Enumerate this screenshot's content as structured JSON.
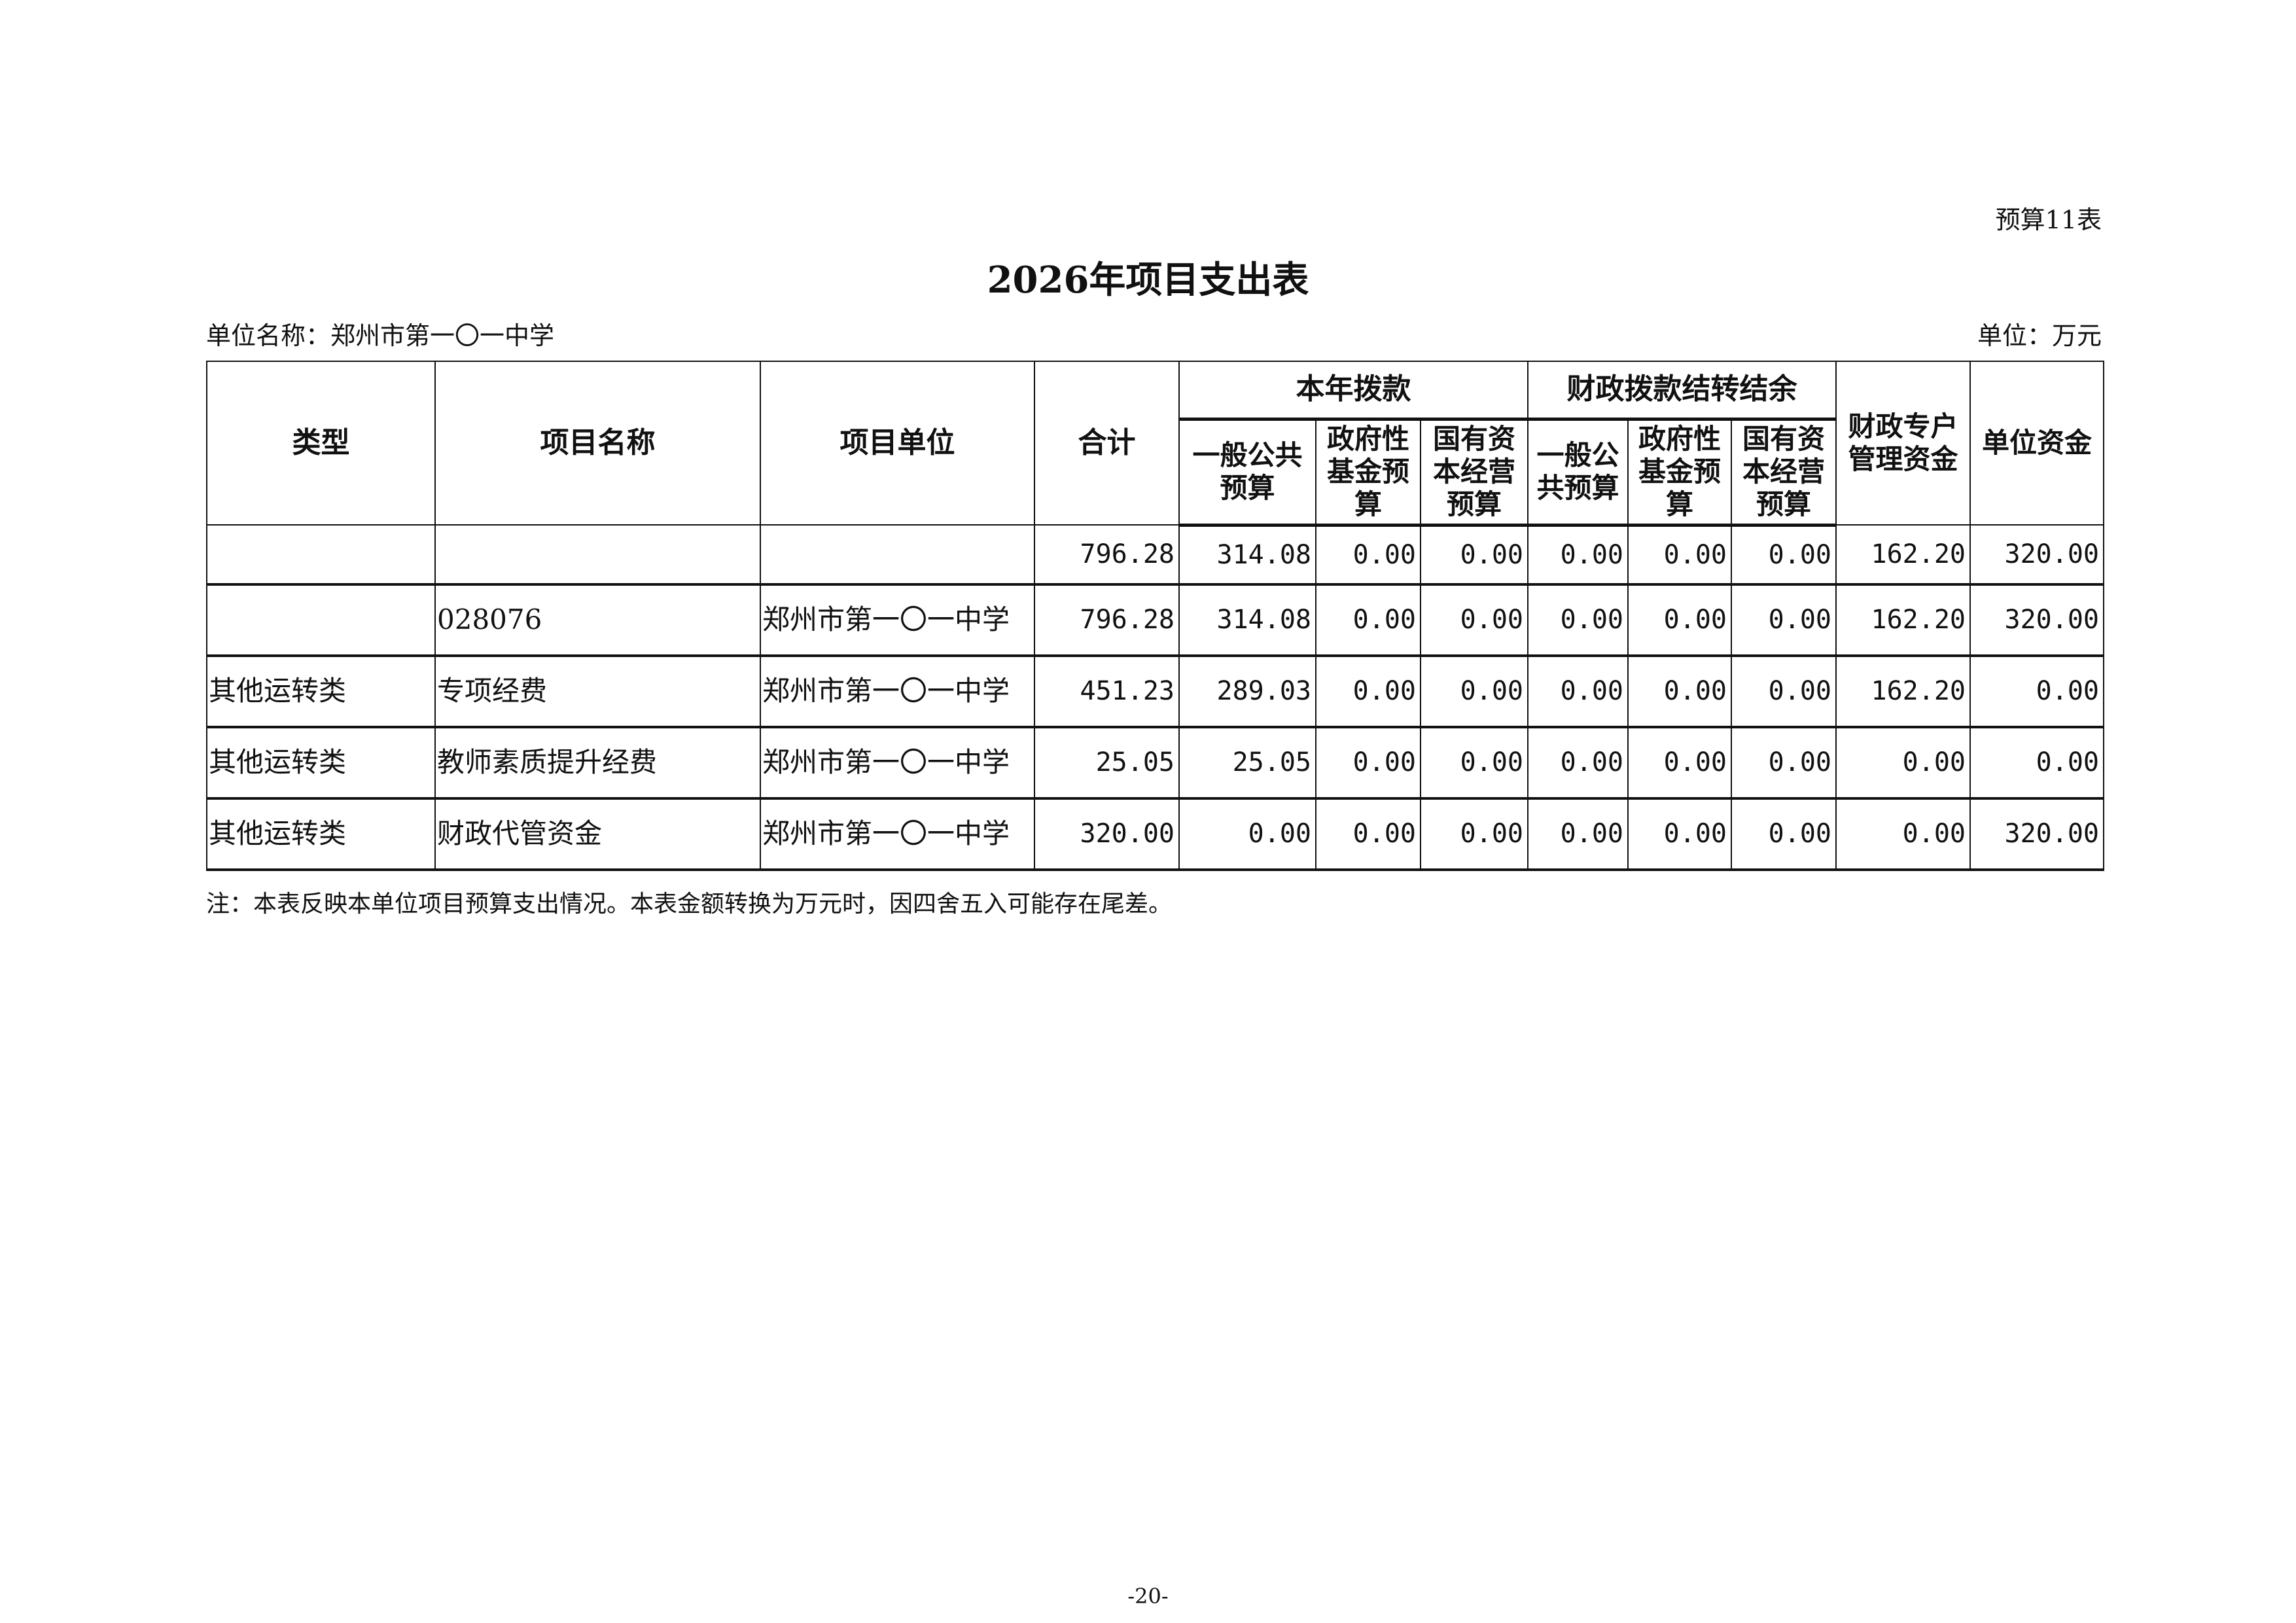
{
  "form_no": "预算11表",
  "title": "2026年项目支出表",
  "unit_name": "单位名称：郑州市第一〇一中学",
  "unit": "单位：万元",
  "headers": {
    "type": "类型",
    "project_name": "项目名称",
    "project_unit": "项目单位",
    "total": "合计",
    "current_year": "本年拨款",
    "carryover": "财政拨款结转结余",
    "general_budget": "一般公共预算",
    "gov_fund": "政府性基金预算",
    "state_capital": "国有资本经营预算",
    "general_budget2": "一般公共预算",
    "gov_fund2": "政府性基金预算",
    "state_capital2": "国有资本经营预算",
    "special_account": "财政专户管理资金",
    "unit_funds": "单位资金"
  },
  "rows": [
    {
      "type": "",
      "name": "",
      "unit": "",
      "values": [
        "796.28",
        "314.08",
        "0.00",
        "0.00",
        "0.00",
        "0.00",
        "0.00",
        "162.20",
        "320.00"
      ]
    },
    {
      "type": "",
      "name": "028076",
      "unit": "郑州市第一〇一中学",
      "values": [
        "796.28",
        "314.08",
        "0.00",
        "0.00",
        "0.00",
        "0.00",
        "0.00",
        "162.20",
        "320.00"
      ]
    },
    {
      "type": "其他运转类",
      "name": "专项经费",
      "unit": "郑州市第一〇一中学",
      "values": [
        "451.23",
        "289.03",
        "0.00",
        "0.00",
        "0.00",
        "0.00",
        "0.00",
        "162.20",
        "0.00"
      ]
    },
    {
      "type": "其他运转类",
      "name": "教师素质提升经费",
      "unit": "郑州市第一〇一中学",
      "values": [
        "25.05",
        "25.05",
        "0.00",
        "0.00",
        "0.00",
        "0.00",
        "0.00",
        "0.00",
        "0.00"
      ]
    },
    {
      "type": "其他运转类",
      "name": "财政代管资金",
      "unit": "郑州市第一〇一中学",
      "values": [
        "320.00",
        "0.00",
        "0.00",
        "0.00",
        "0.00",
        "0.00",
        "0.00",
        "0.00",
        "320.00"
      ]
    }
  ],
  "note": "注：本表反映本单位项目预算支出情况。本表金额转换为万元时，因四舍五入可能存在尾差。",
  "page_number": "-20-"
}
